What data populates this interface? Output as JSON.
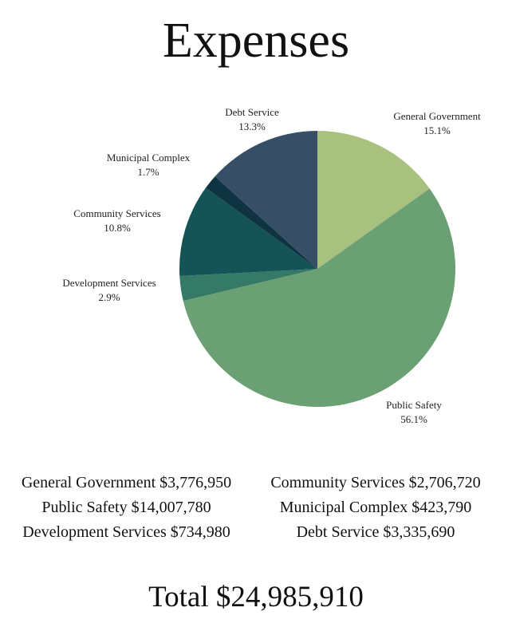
{
  "chart_data": {
    "type": "pie",
    "title": "Expenses",
    "start_angle_deg": 0,
    "direction": "clockwise",
    "slices": [
      {
        "name": "General Government",
        "percent": 15.1,
        "pct_label": "15.1%",
        "color": "#a9c17e"
      },
      {
        "name": "Public Safety",
        "percent": 56.1,
        "pct_label": "56.1%",
        "color": "#6aa073"
      },
      {
        "name": "Development Services",
        "percent": 2.9,
        "pct_label": "2.9%",
        "color": "#357a66"
      },
      {
        "name": "Community Services",
        "percent": 10.8,
        "pct_label": "10.8%",
        "color": "#145356"
      },
      {
        "name": "Municipal Complex",
        "percent": 1.7,
        "pct_label": "1.7%",
        "color": "#0f3340"
      },
      {
        "name": "Debt Service",
        "percent": 13.3,
        "pct_label": "13.3%",
        "color": "#364f66"
      }
    ]
  },
  "legend": {
    "left": [
      "General Government $3,776,950",
      "Public Safety $14,007,780",
      "Development Services $734,980"
    ],
    "right": [
      "Community Services $2,706,720",
      "Municipal Complex $423,790",
      "Debt Service $3,335,690"
    ]
  },
  "total": "Total $24,985,910"
}
